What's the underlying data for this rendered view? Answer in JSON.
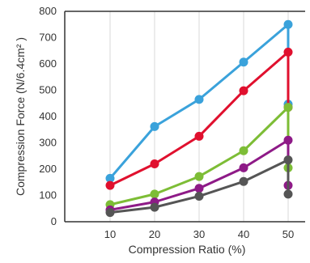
{
  "chart_data": {
    "type": "line",
    "title": "",
    "xlabel": "Compression Ratio (%)",
    "ylabel": "Compression Force (N/6.4cm² )",
    "x": [
      10,
      20,
      30,
      40,
      50
    ],
    "x_tick_labels": [
      "10",
      "20",
      "30",
      "40",
      "50"
    ],
    "y_tick_labels": [
      "0",
      "100",
      "200",
      "300",
      "400",
      "500",
      "600",
      "700",
      "800"
    ],
    "xlim": [
      0,
      55
    ],
    "ylim": [
      0,
      800
    ],
    "grid": "vertical",
    "legend": "none",
    "series": [
      {
        "color": "#3aa2db",
        "values": [
          165,
          362,
          465,
          607,
          750
        ],
        "release_value": 447
      },
      {
        "color": "#e0102e",
        "values": [
          138,
          220,
          325,
          498,
          645
        ],
        "release_value": 435
      },
      {
        "color": "#7dbd36",
        "values": [
          65,
          105,
          172,
          270,
          435
        ],
        "release_value": 205
      },
      {
        "color": "#8e1a87",
        "values": [
          45,
          75,
          127,
          205,
          310
        ],
        "release_value": 138
      },
      {
        "color": "#555555",
        "values": [
          35,
          55,
          97,
          153,
          235
        ],
        "release_value": 105
      }
    ]
  }
}
